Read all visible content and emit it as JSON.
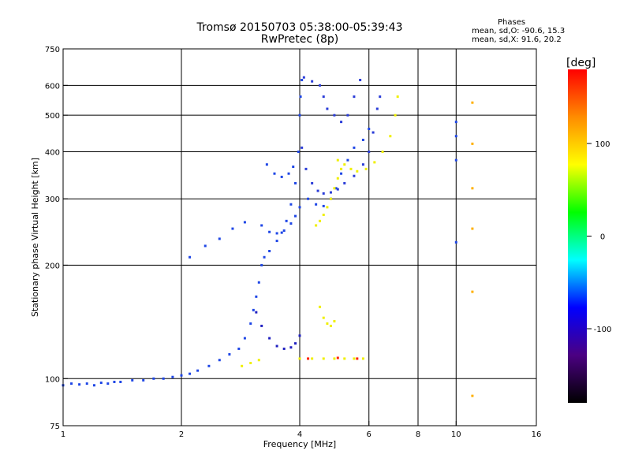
{
  "chart_data": {
    "type": "scatter",
    "title": "Tromsø 20150703 05:38:00-05:39:43",
    "subtitle": "RwPretec (8p)",
    "xlabel": "Frequency [MHz]",
    "ylabel": "Stationary phase Virtual Height [km]",
    "x_scale": "log",
    "y_scale": "log",
    "xlim": [
      1,
      16
    ],
    "ylim": [
      75,
      750
    ],
    "x_ticks": [
      "1",
      "2",
      "4",
      "6",
      "8",
      "10",
      "16"
    ],
    "x_tick_values": [
      1,
      2,
      4,
      6,
      8,
      10,
      16
    ],
    "y_ticks": [
      "75",
      "100",
      "200",
      "300",
      "400",
      "500",
      "600",
      "750"
    ],
    "y_tick_values": [
      75,
      100,
      200,
      300,
      400,
      500,
      600,
      750
    ],
    "x_grid": [
      2,
      4,
      6,
      8,
      10
    ],
    "y_grid": [
      100,
      200,
      300,
      400,
      500,
      600
    ],
    "grid": true,
    "phases": {
      "title": "Phases",
      "line_o": "mean, sd,O: -90.6, 15.3",
      "line_x": "mean, sd,X:  91.6, 20.2"
    },
    "colorbar": {
      "label": "[deg]",
      "range": [
        -180,
        180
      ],
      "ticks": [
        "100",
        "0",
        "-100"
      ],
      "tick_values": [
        100,
        0,
        -100
      ],
      "colors": [
        "#000000",
        "#4b0082",
        "#0000ff",
        "#00ffff",
        "#00ff00",
        "#ffff00",
        "#ff8c00",
        "#ff0000"
      ]
    },
    "series": [
      {
        "color": "#1e46e6",
        "points": [
          [
            1.0,
            96
          ],
          [
            1.05,
            97
          ],
          [
            1.1,
            96.5
          ],
          [
            1.15,
            97
          ],
          [
            1.2,
            96
          ],
          [
            1.25,
            97.5
          ],
          [
            1.3,
            97
          ],
          [
            1.35,
            98
          ],
          [
            1.4,
            98
          ],
          [
            1.5,
            99
          ],
          [
            1.6,
            99
          ],
          [
            1.7,
            100
          ],
          [
            1.8,
            100
          ],
          [
            1.9,
            101
          ],
          [
            2.0,
            102
          ],
          [
            2.1,
            103
          ],
          [
            2.2,
            105
          ],
          [
            2.35,
            108
          ],
          [
            2.5,
            112
          ],
          [
            2.65,
            116
          ],
          [
            2.8,
            120
          ]
        ]
      },
      {
        "color": "#1e46e6",
        "points": [
          [
            2.9,
            128
          ],
          [
            3.0,
            140
          ],
          [
            3.05,
            152
          ],
          [
            3.1,
            165
          ],
          [
            3.15,
            180
          ],
          [
            3.2,
            200
          ],
          [
            3.25,
            210
          ],
          [
            3.35,
            218
          ],
          [
            3.5,
            232
          ],
          [
            3.6,
            244
          ],
          [
            3.7,
            262
          ],
          [
            3.8,
            290
          ],
          [
            3.9,
            330
          ],
          [
            3.97,
            400
          ],
          [
            4.0,
            500
          ],
          [
            4.02,
            560
          ],
          [
            4.05,
            620
          ]
        ]
      },
      {
        "color": "#2020c0",
        "points": [
          [
            3.1,
            150
          ],
          [
            3.2,
            138
          ],
          [
            3.35,
            128
          ],
          [
            3.5,
            122
          ],
          [
            3.65,
            120
          ],
          [
            3.8,
            121
          ],
          [
            3.9,
            124
          ],
          [
            4.0,
            130
          ]
        ]
      },
      {
        "color": "#1e46e6",
        "points": [
          [
            3.2,
            255
          ],
          [
            3.35,
            245
          ],
          [
            3.5,
            243
          ],
          [
            3.65,
            247
          ],
          [
            3.8,
            258
          ],
          [
            3.9,
            270
          ],
          [
            4.0,
            285
          ]
        ]
      },
      {
        "color": "#1e46e6",
        "points": [
          [
            3.3,
            370
          ],
          [
            3.45,
            350
          ],
          [
            3.6,
            343
          ],
          [
            3.75,
            350
          ],
          [
            3.85,
            365
          ]
        ]
      },
      {
        "color": "#2a3cd8",
        "points": [
          [
            4.05,
            410
          ],
          [
            4.15,
            360
          ],
          [
            4.3,
            330
          ],
          [
            4.45,
            315
          ],
          [
            4.6,
            310
          ],
          [
            4.8,
            312
          ],
          [
            5.0,
            318
          ],
          [
            5.2,
            330
          ],
          [
            5.5,
            345
          ],
          [
            5.8,
            370
          ],
          [
            6.0,
            400
          ],
          [
            6.15,
            450
          ],
          [
            6.3,
            520
          ],
          [
            6.4,
            560
          ]
        ]
      },
      {
        "color": "#2a3cd8",
        "points": [
          [
            4.1,
            630
          ],
          [
            4.3,
            615
          ],
          [
            4.5,
            600
          ],
          [
            4.6,
            560
          ],
          [
            4.7,
            520
          ],
          [
            4.9,
            500
          ],
          [
            5.1,
            480
          ],
          [
            5.3,
            500
          ],
          [
            5.5,
            560
          ],
          [
            5.7,
            620
          ]
        ]
      },
      {
        "color": "#1e46e6",
        "points": [
          [
            4.2,
            300
          ],
          [
            4.4,
            290
          ],
          [
            4.6,
            287
          ],
          [
            4.8,
            300
          ],
          [
            4.95,
            320
          ],
          [
            5.1,
            350
          ],
          [
            5.3,
            380
          ],
          [
            5.5,
            410
          ],
          [
            5.8,
            430
          ],
          [
            6.0,
            460
          ]
        ]
      },
      {
        "color": "#f0f000",
        "points": [
          [
            4.4,
            255
          ],
          [
            4.5,
            262
          ],
          [
            4.6,
            272
          ],
          [
            4.7,
            285
          ],
          [
            4.8,
            300
          ],
          [
            4.9,
            320
          ],
          [
            5.0,
            340
          ],
          [
            5.1,
            360
          ]
        ]
      },
      {
        "color": "#f0f000",
        "points": [
          [
            5.0,
            380
          ],
          [
            5.2,
            370
          ],
          [
            5.4,
            360
          ],
          [
            5.6,
            355
          ],
          [
            5.9,
            360
          ],
          [
            6.2,
            375
          ],
          [
            6.5,
            400
          ],
          [
            6.8,
            440
          ],
          [
            7.0,
            500
          ],
          [
            7.1,
            560
          ]
        ]
      },
      {
        "color": "#f0f000",
        "points": [
          [
            4.5,
            155
          ],
          [
            4.6,
            145
          ],
          [
            4.7,
            140
          ],
          [
            4.8,
            138
          ],
          [
            4.9,
            142
          ]
        ]
      },
      {
        "color": "#f0f000",
        "points": [
          [
            2.85,
            108
          ],
          [
            3.0,
            110
          ],
          [
            3.15,
            112
          ]
        ]
      },
      {
        "color": "#f0f000",
        "points": [
          [
            4.0,
            113
          ],
          [
            4.3,
            113
          ],
          [
            4.6,
            113
          ],
          [
            4.9,
            113
          ],
          [
            5.2,
            113
          ],
          [
            5.5,
            113
          ],
          [
            5.8,
            113
          ]
        ]
      },
      {
        "color": "#ff2000",
        "points": [
          [
            4.2,
            113
          ],
          [
            5.0,
            113.5
          ],
          [
            5.6,
            113
          ]
        ]
      },
      {
        "color": "#1e46e6",
        "points": [
          [
            10.0,
            480
          ],
          [
            10.0,
            440
          ],
          [
            10.0,
            380
          ],
          [
            10.0,
            230
          ]
        ]
      },
      {
        "color": "#ffb000",
        "points": [
          [
            11.0,
            540
          ],
          [
            11.0,
            420
          ],
          [
            11.0,
            320
          ],
          [
            11.0,
            250
          ],
          [
            11.0,
            170
          ],
          [
            11.0,
            90
          ]
        ]
      },
      {
        "color": "#1e46e6",
        "points": [
          [
            2.1,
            210
          ],
          [
            2.3,
            225
          ],
          [
            2.5,
            235
          ],
          [
            2.7,
            250
          ],
          [
            2.9,
            260
          ]
        ]
      }
    ]
  }
}
